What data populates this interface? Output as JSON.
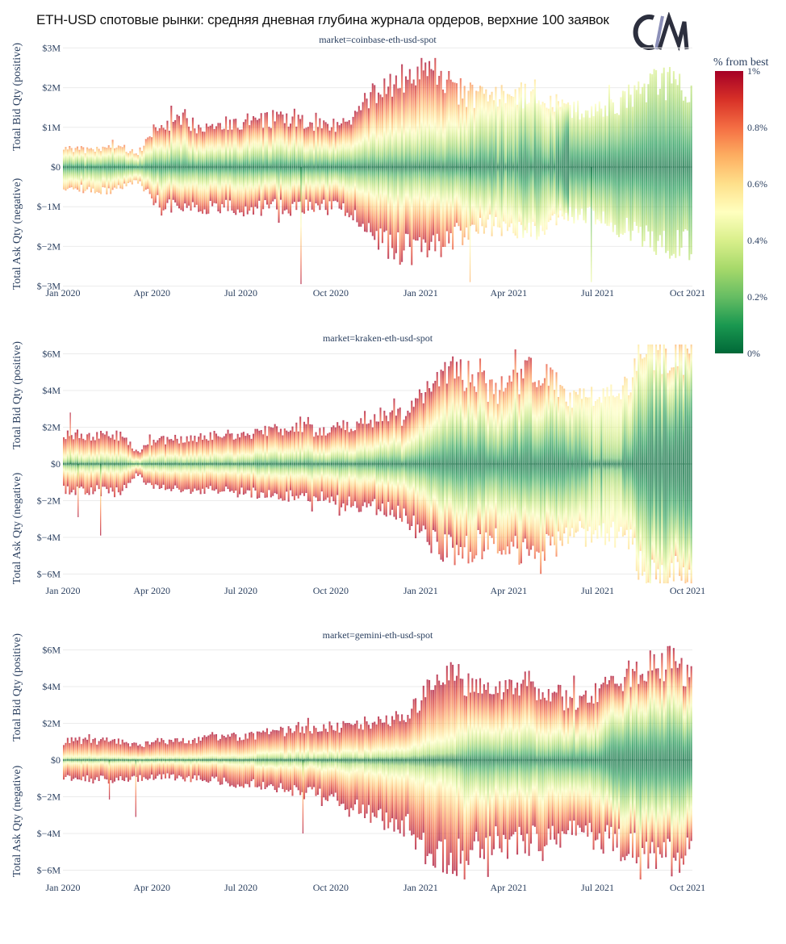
{
  "title": "ETH-USD спотовые рынки: средняя дневная глубина журнала ордеров, верхние 100 заявок",
  "logo": {
    "icon": "coinmetrics-logo",
    "brand_dark": "#2c2f3e",
    "brand_accent": "#8b8fb8"
  },
  "colorbar": {
    "title": "% from best",
    "ticks": [
      "1%",
      "0.8%",
      "0.6%",
      "0.4%",
      "0.2%",
      "0%"
    ],
    "tick_values": [
      1,
      0.8,
      0.6,
      0.4,
      0.2,
      0
    ],
    "range": [
      0,
      1
    ],
    "colorscale": [
      "#006837",
      "#1a9850",
      "#66bd63",
      "#a6d96a",
      "#d9ef8b",
      "#ffffbf",
      "#fee08b",
      "#fdae61",
      "#f46d43",
      "#d73027",
      "#a50026"
    ]
  },
  "chart_data": [
    {
      "type": "bar",
      "title": "market=coinbase-eth-usd-spot",
      "xlabel": "",
      "ylabel_top": "Total Bid Qty (positive)",
      "ylabel_bottom": "Total Ask Qty (negative)",
      "color_by": "% from best",
      "grid": true,
      "legend": "colorbar-right",
      "ylim": [
        -3,
        3
      ],
      "yticks": [
        "$3M",
        "$2M",
        "$1M",
        "$0",
        "$−1M",
        "$−2M",
        "$−3M"
      ],
      "ytick_values": [
        3,
        2,
        1,
        0,
        -1,
        -2,
        -3
      ],
      "xticks": [
        "Jan 2020",
        "Apr 2020",
        "Jul 2020",
        "Oct 2020",
        "Jan 2021",
        "Apr 2021",
        "Jul 2021",
        "Oct 2021"
      ],
      "xtick_dates": [
        "2020-01-01",
        "2020-04-01",
        "2020-07-01",
        "2020-10-01",
        "2021-01-01",
        "2021-04-01",
        "2021-07-01",
        "2021-10-01"
      ],
      "x": [
        "2020-01-01",
        "2020-01-16",
        "2020-02-01",
        "2020-02-16",
        "2020-03-01",
        "2020-03-16",
        "2020-04-01",
        "2020-04-16",
        "2020-05-01",
        "2020-05-16",
        "2020-06-01",
        "2020-06-16",
        "2020-07-01",
        "2020-07-16",
        "2020-08-01",
        "2020-08-16",
        "2020-09-01",
        "2020-09-16",
        "2020-10-01",
        "2020-10-16",
        "2020-11-01",
        "2020-11-16",
        "2020-12-01",
        "2020-12-16",
        "2021-01-01",
        "2021-01-16",
        "2021-02-01",
        "2021-02-16",
        "2021-03-01",
        "2021-03-16",
        "2021-04-01",
        "2021-04-16",
        "2021-05-01",
        "2021-05-16",
        "2021-06-01",
        "2021-06-16",
        "2021-07-01",
        "2021-07-16",
        "2021-08-01",
        "2021-08-16",
        "2021-09-01",
        "2021-09-16",
        "2021-10-01"
      ],
      "series": [
        {
          "name": "bid_depth_musd",
          "values": [
            0.5,
            0.45,
            0.4,
            0.5,
            0.5,
            0.3,
            0.9,
            1.1,
            1.15,
            1.05,
            1.1,
            1.1,
            1.05,
            1.15,
            1.2,
            1.15,
            1.1,
            1.15,
            1.1,
            1.05,
            1.5,
            1.9,
            2.1,
            2.2,
            2.3,
            2.2,
            2.0,
            1.8,
            1.8,
            1.7,
            1.9,
            1.8,
            1.9,
            1.6,
            1.4,
            1.5,
            1.4,
            1.5,
            1.8,
            2.0,
            2.1,
            2.1,
            2.0
          ]
        },
        {
          "name": "ask_depth_musd",
          "values": [
            -0.5,
            -0.55,
            -0.55,
            -0.6,
            -0.5,
            -0.3,
            -0.8,
            -0.95,
            -1.0,
            -1.0,
            -1.05,
            -1.0,
            -1.05,
            -1.05,
            -1.0,
            -1.05,
            -1.0,
            -1.05,
            -1.0,
            -1.1,
            -1.4,
            -1.8,
            -2.0,
            -2.1,
            -2.2,
            -2.1,
            -1.8,
            -1.6,
            -1.4,
            -1.4,
            -1.5,
            -1.5,
            -1.6,
            -1.3,
            -1.2,
            -1.2,
            -1.3,
            -1.4,
            -1.6,
            -1.8,
            -1.9,
            -2.0,
            -1.9
          ]
        },
        {
          "name": "max_pct_from_best",
          "values": [
            0.75,
            0.75,
            0.7,
            0.75,
            0.75,
            0.7,
            0.9,
            1,
            1,
            1,
            1,
            1,
            1,
            1,
            1,
            1,
            1,
            1,
            1,
            1,
            1,
            1,
            1,
            1,
            0.95,
            0.95,
            0.85,
            0.75,
            0.65,
            0.6,
            0.6,
            0.55,
            0.55,
            0.6,
            0.5,
            0.48,
            0.45,
            0.45,
            0.42,
            0.4,
            0.38,
            0.37,
            0.36
          ]
        },
        {
          "name": "share_within_0_5pct",
          "values": [
            0.6,
            0.6,
            0.6,
            0.6,
            0.6,
            0.6,
            0.5,
            0.45,
            0.45,
            0.45,
            0.45,
            0.45,
            0.45,
            0.45,
            0.45,
            0.45,
            0.45,
            0.45,
            0.45,
            0.45,
            0.42,
            0.42,
            0.42,
            0.42,
            0.4,
            0.4,
            0.5,
            0.6,
            0.72,
            0.8,
            0.8,
            0.88,
            0.88,
            0.85,
            1,
            1,
            1,
            1,
            1,
            1,
            1,
            1,
            1
          ]
        }
      ],
      "spikes": [
        {
          "date": "2020-08-31",
          "value": -2.95
        },
        {
          "date": "2021-02-20",
          "value": -2.9
        },
        {
          "date": "2021-06-24",
          "value": -2.9
        }
      ]
    },
    {
      "type": "bar",
      "title": "market=kraken-eth-usd-spot",
      "xlabel": "",
      "ylabel_top": "Total Bid Qty (positive)",
      "ylabel_bottom": "Total Ask Qty (negative)",
      "color_by": "% from best",
      "grid": true,
      "legend": "colorbar-right",
      "ylim": [
        -6.5,
        6.5
      ],
      "yticks": [
        "$6M",
        "$4M",
        "$2M",
        "$0",
        "$−2M",
        "$−4M",
        "$−6M"
      ],
      "ytick_values": [
        6,
        4,
        2,
        0,
        -2,
        -4,
        -6
      ],
      "xticks": [
        "Jan 2020",
        "Apr 2020",
        "Jul 2020",
        "Oct 2020",
        "Jan 2021",
        "Apr 2021",
        "Jul 2021",
        "Oct 2021"
      ],
      "xtick_dates": [
        "2020-01-01",
        "2020-04-01",
        "2020-07-01",
        "2020-10-01",
        "2021-01-01",
        "2021-04-01",
        "2021-07-01",
        "2021-10-01"
      ],
      "x": [
        "2020-01-01",
        "2020-01-16",
        "2020-02-01",
        "2020-02-16",
        "2020-03-01",
        "2020-03-16",
        "2020-04-01",
        "2020-04-16",
        "2020-05-01",
        "2020-05-16",
        "2020-06-01",
        "2020-06-16",
        "2020-07-01",
        "2020-07-16",
        "2020-08-01",
        "2020-08-16",
        "2020-09-01",
        "2020-09-16",
        "2020-10-01",
        "2020-10-16",
        "2020-11-01",
        "2020-11-16",
        "2020-12-01",
        "2020-12-16",
        "2021-01-01",
        "2021-01-16",
        "2021-02-01",
        "2021-02-16",
        "2021-03-01",
        "2021-03-16",
        "2021-04-01",
        "2021-04-16",
        "2021-05-01",
        "2021-05-16",
        "2021-06-01",
        "2021-06-16",
        "2021-07-01",
        "2021-07-16",
        "2021-08-01",
        "2021-08-16",
        "2021-09-01",
        "2021-09-16",
        "2021-10-01"
      ],
      "series": [
        {
          "name": "bid_depth_musd",
          "values": [
            1.6,
            1.7,
            1.5,
            1.6,
            1.5,
            0.6,
            1.3,
            1.3,
            1.4,
            1.4,
            1.5,
            1.6,
            1.5,
            1.7,
            1.9,
            1.8,
            2.0,
            1.8,
            1.9,
            2.1,
            2.2,
            2.4,
            2.5,
            2.6,
            3.6,
            4.3,
            5.0,
            4.8,
            4.6,
            3.8,
            4.2,
            4.8,
            5.0,
            4.4,
            3.6,
            3.8,
            3.8,
            3.9,
            4.0,
            6.0,
            6.0,
            6.1,
            6.0
          ]
        },
        {
          "name": "ask_depth_musd",
          "values": [
            -1.4,
            -1.5,
            -1.4,
            -1.6,
            -1.4,
            -0.5,
            -1.3,
            -1.3,
            -1.3,
            -1.4,
            -1.5,
            -1.5,
            -1.6,
            -1.6,
            -1.8,
            -1.7,
            -1.9,
            -1.8,
            -2.0,
            -2.2,
            -2.3,
            -2.4,
            -2.6,
            -2.8,
            -3.8,
            -4.4,
            -4.8,
            -4.6,
            -4.2,
            -4.0,
            -4.4,
            -4.8,
            -4.9,
            -4.4,
            -3.6,
            -3.8,
            -3.8,
            -3.8,
            -3.9,
            -6.0,
            -6.0,
            -6.1,
            -6.0
          ]
        },
        {
          "name": "max_pct_from_best",
          "values": [
            1,
            1,
            1,
            1,
            1,
            1,
            1,
            1,
            1,
            1,
            1,
            1,
            1,
            1,
            1,
            1,
            1,
            1,
            1,
            1,
            1,
            1,
            1,
            1,
            1,
            1,
            0.95,
            0.9,
            0.9,
            0.8,
            0.85,
            0.9,
            0.9,
            0.75,
            0.65,
            0.6,
            0.55,
            0.55,
            0.6,
            0.62,
            0.65,
            0.7,
            0.7
          ]
        },
        {
          "name": "share_within_0_5pct",
          "values": [
            0.3,
            0.3,
            0.3,
            0.3,
            0.3,
            0.3,
            0.3,
            0.3,
            0.3,
            0.3,
            0.3,
            0.3,
            0.3,
            0.35,
            0.35,
            0.35,
            0.35,
            0.35,
            0.35,
            0.35,
            0.35,
            0.4,
            0.4,
            0.4,
            0.45,
            0.5,
            0.55,
            0.6,
            0.6,
            0.6,
            0.6,
            0.6,
            0.6,
            0.7,
            0.8,
            0.8,
            0.8,
            0.8,
            0.8,
            0.85,
            0.85,
            0.85,
            0.85
          ]
        }
      ],
      "spikes": [
        {
          "date": "2020-01-08",
          "value": 2.8
        },
        {
          "date": "2020-01-16",
          "value": -2.9
        },
        {
          "date": "2020-02-08",
          "value": -3.9
        }
      ]
    },
    {
      "type": "bar",
      "title": "market=gemini-eth-usd-spot",
      "xlabel": "",
      "ylabel_top": "Total Bid Qty (positive)",
      "ylabel_bottom": "Total Ask Qty (negative)",
      "color_by": "% from best",
      "grid": true,
      "legend": "colorbar-right",
      "ylim": [
        -6.5,
        6.5
      ],
      "yticks": [
        "$6M",
        "$4M",
        "$2M",
        "$0",
        "$−2M",
        "$−4M",
        "$−6M"
      ],
      "ytick_values": [
        6,
        4,
        2,
        0,
        -2,
        -4,
        -6
      ],
      "xticks": [
        "Jan 2020",
        "Apr 2020",
        "Jul 2020",
        "Oct 2020",
        "Jan 2021",
        "Apr 2021",
        "Jul 2021",
        "Oct 2021"
      ],
      "xtick_dates": [
        "2020-01-01",
        "2020-04-01",
        "2020-07-01",
        "2020-10-01",
        "2021-01-01",
        "2021-04-01",
        "2021-07-01",
        "2021-10-01"
      ],
      "x": [
        "2020-01-01",
        "2020-01-16",
        "2020-02-01",
        "2020-02-16",
        "2020-03-01",
        "2020-03-16",
        "2020-04-01",
        "2020-04-16",
        "2020-05-01",
        "2020-05-16",
        "2020-06-01",
        "2020-06-16",
        "2020-07-01",
        "2020-07-16",
        "2020-08-01",
        "2020-08-16",
        "2020-09-01",
        "2020-09-16",
        "2020-10-01",
        "2020-10-16",
        "2020-11-01",
        "2020-11-16",
        "2020-12-01",
        "2020-12-16",
        "2021-01-01",
        "2021-01-16",
        "2021-02-01",
        "2021-02-16",
        "2021-03-01",
        "2021-03-16",
        "2021-04-01",
        "2021-04-16",
        "2021-05-01",
        "2021-05-16",
        "2021-06-01",
        "2021-06-16",
        "2021-07-01",
        "2021-07-16",
        "2021-08-01",
        "2021-08-16",
        "2021-09-01",
        "2021-09-16",
        "2021-10-01"
      ],
      "series": [
        {
          "name": "bid_depth_musd",
          "values": [
            1.0,
            1.1,
            1.0,
            1.1,
            1.0,
            0.8,
            0.9,
            1.0,
            1.1,
            1.1,
            1.2,
            1.2,
            1.3,
            1.4,
            1.5,
            1.6,
            1.8,
            1.6,
            1.7,
            1.8,
            1.9,
            2.1,
            2.2,
            2.3,
            3.4,
            4.2,
            4.6,
            4.2,
            3.8,
            3.6,
            3.9,
            4.1,
            4.0,
            3.6,
            3.2,
            3.4,
            3.8,
            4.2,
            4.6,
            5.0,
            5.2,
            5.3,
            4.6
          ]
        },
        {
          "name": "ask_depth_musd",
          "values": [
            -0.9,
            -1.0,
            -1.0,
            -1.1,
            -1.0,
            -1.0,
            -0.9,
            -0.9,
            -1.0,
            -1.0,
            -1.1,
            -1.2,
            -1.3,
            -1.3,
            -1.5,
            -1.6,
            -1.8,
            -1.7,
            -2.0,
            -2.4,
            -2.7,
            -3.0,
            -3.3,
            -3.5,
            -4.6,
            -5.2,
            -5.5,
            -5.0,
            -4.6,
            -4.5,
            -4.6,
            -4.5,
            -4.4,
            -4.0,
            -4.0,
            -4.2,
            -4.2,
            -4.5,
            -4.8,
            -5.0,
            -5.2,
            -5.4,
            -5.0
          ]
        },
        {
          "name": "max_pct_from_best",
          "values": [
            1,
            1,
            1,
            1,
            1,
            1,
            1,
            1,
            1,
            1,
            1,
            1,
            1,
            1,
            1,
            1,
            1,
            1,
            1,
            1,
            1,
            1,
            1,
            1,
            1,
            1,
            1,
            1,
            1,
            1,
            1,
            1,
            1,
            1,
            1,
            1,
            1,
            1,
            1,
            1,
            1,
            1,
            1
          ]
        },
        {
          "name": "share_within_0_5pct",
          "values": [
            0.2,
            0.2,
            0.2,
            0.2,
            0.2,
            0.2,
            0.2,
            0.2,
            0.2,
            0.2,
            0.2,
            0.2,
            0.2,
            0.22,
            0.22,
            0.22,
            0.22,
            0.22,
            0.22,
            0.22,
            0.22,
            0.25,
            0.25,
            0.25,
            0.25,
            0.25,
            0.25,
            0.4,
            0.4,
            0.4,
            0.4,
            0.4,
            0.4,
            0.4,
            0.45,
            0.45,
            0.45,
            0.6,
            0.6,
            0.6,
            0.6,
            0.6,
            0.6
          ]
        }
      ],
      "spikes": [
        {
          "date": "2020-02-17",
          "value": -2.15
        },
        {
          "date": "2020-03-15",
          "value": -3.1
        },
        {
          "date": "2020-09-02",
          "value": -4.0
        }
      ]
    }
  ]
}
